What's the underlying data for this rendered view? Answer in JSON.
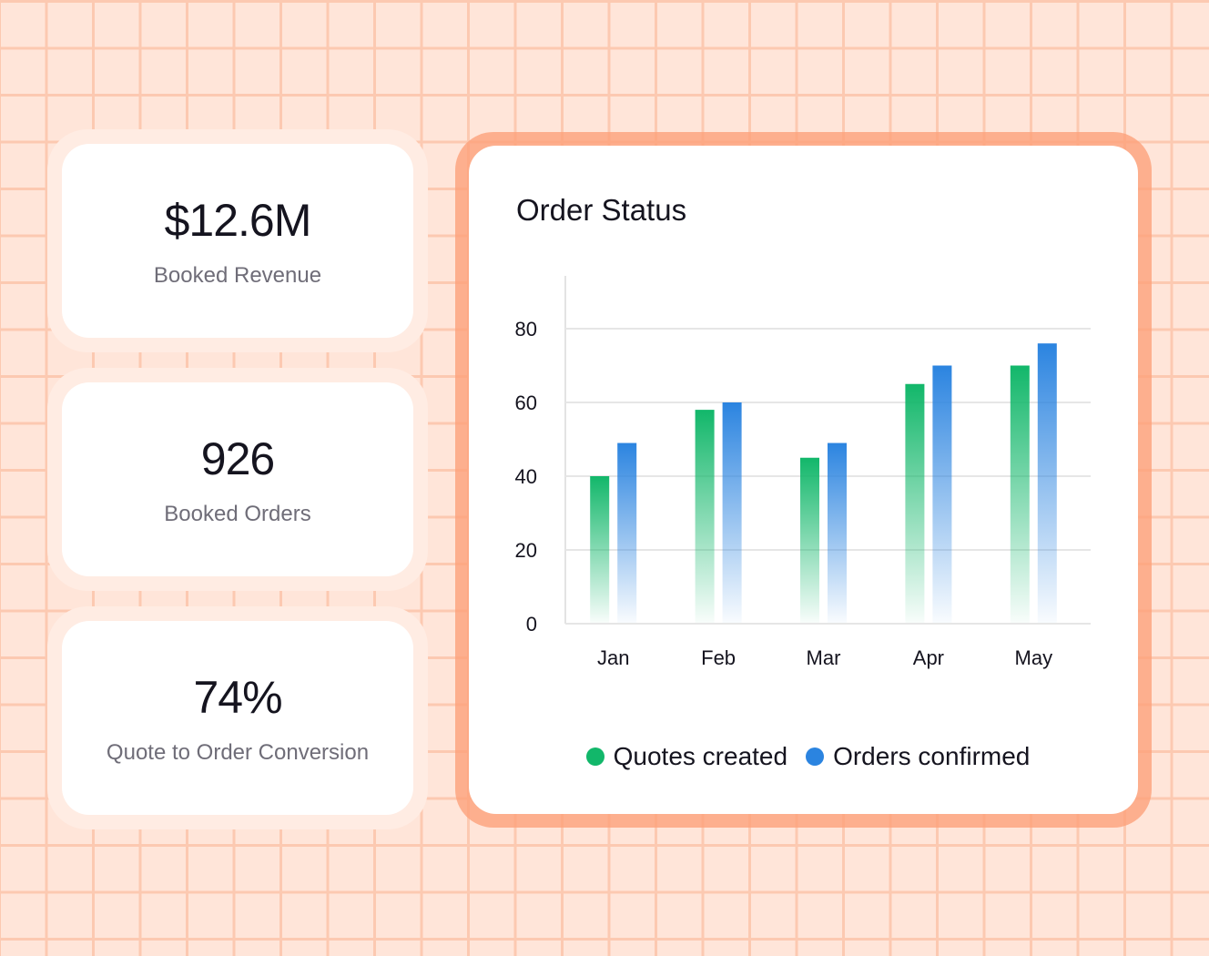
{
  "kpis": [
    {
      "value": "$12.6M",
      "label": "Booked Revenue"
    },
    {
      "value": "926",
      "label": "Booked Orders"
    },
    {
      "value": "74%",
      "label": "Quote to Order Conversion"
    }
  ],
  "colors": {
    "quotes": "#12b76a",
    "orders": "#2b84e0",
    "accent_border": "#fdb394",
    "background": "#ffe5d9"
  },
  "chart_data": {
    "type": "bar",
    "title": "Order Status",
    "categories": [
      "Jan",
      "Feb",
      "Mar",
      "Apr",
      "May"
    ],
    "series": [
      {
        "name": "Quotes created",
        "values": [
          40,
          58,
          45,
          65,
          70
        ]
      },
      {
        "name": "Orders confirmed",
        "values": [
          49,
          60,
          49,
          70,
          76
        ]
      }
    ],
    "yticks": [
      "0",
      "20",
      "40",
      "60",
      "80"
    ],
    "ylim": [
      0,
      80
    ],
    "xlabel": "",
    "ylabel": "",
    "grid": true,
    "legend": "bottom-center"
  }
}
